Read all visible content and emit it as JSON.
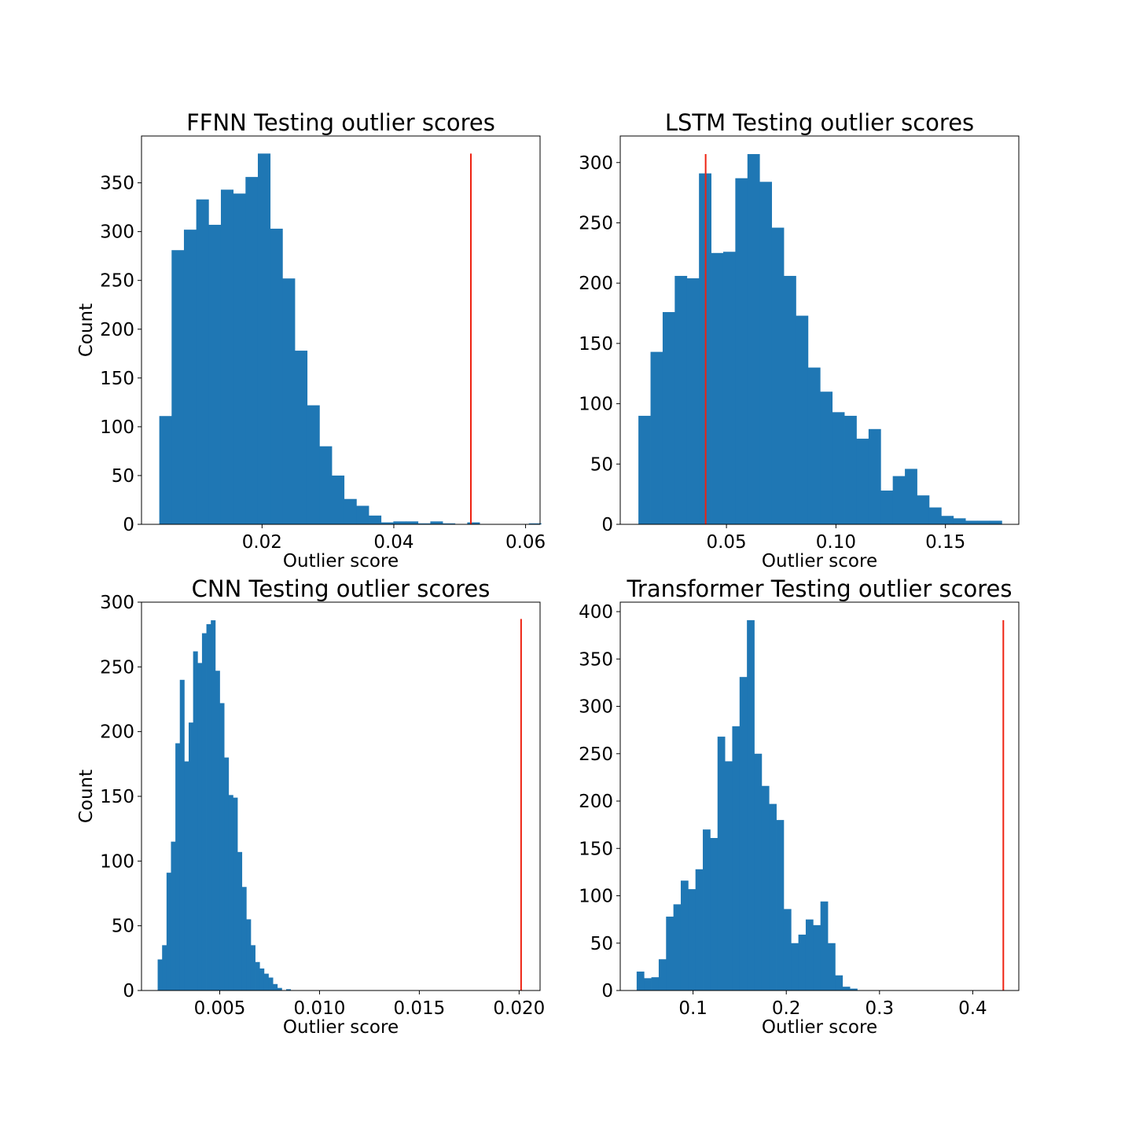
{
  "figure": {
    "colors": {
      "bar": "#1f77b4",
      "threshold": "#ee2211",
      "frame": "#000000"
    }
  },
  "chart_data": [
    {
      "type": "bar",
      "subtype": "histogram",
      "title": "FFNN Testing outlier scores",
      "xlabel": "Outlier score",
      "ylabel": "Count",
      "xlim": [
        0.0017,
        0.0622
      ],
      "ylim": [
        0,
        398
      ],
      "xticks": [
        0.02,
        0.04,
        0.06
      ],
      "xtick_labels": [
        "0.02",
        "0.04",
        "0.06"
      ],
      "yticks": [
        0,
        50,
        100,
        150,
        200,
        250,
        300,
        350
      ],
      "ytick_labels": [
        "0",
        "50",
        "100",
        "150",
        "200",
        "250",
        "300",
        "350"
      ],
      "bin_start": 0.0044,
      "bin_width": 0.00187,
      "counts": [
        111,
        281,
        302,
        333,
        307,
        343,
        339,
        356,
        380,
        303,
        252,
        178,
        122,
        80,
        50,
        26,
        19,
        9,
        2,
        3,
        3,
        1,
        3,
        1,
        0,
        2,
        0,
        0,
        0,
        0,
        1
      ],
      "threshold": 0.0517,
      "threshold_top": 380,
      "grid": false
    },
    {
      "type": "bar",
      "subtype": "histogram",
      "title": "LSTM Testing outlier scores",
      "xlabel": "Outlier score",
      "ylabel": "",
      "xlim": [
        0.0015,
        0.1835
      ],
      "ylim": [
        0,
        322
      ],
      "xticks": [
        0.05,
        0.1,
        0.15
      ],
      "xtick_labels": [
        "0.05",
        "0.10",
        "0.15"
      ],
      "yticks": [
        0,
        50,
        100,
        150,
        200,
        250,
        300
      ],
      "ytick_labels": [
        "0",
        "50",
        "100",
        "150",
        "200",
        "250",
        "300"
      ],
      "bin_start": 0.0098,
      "bin_width": 0.005531,
      "counts": [
        90,
        143,
        176,
        206,
        204,
        291,
        225,
        226,
        287,
        307,
        284,
        246,
        206,
        173,
        130,
        110,
        93,
        90,
        71,
        79,
        28,
        40,
        46,
        24,
        14,
        7,
        5,
        3,
        3,
        3
      ],
      "threshold": 0.0405,
      "threshold_top": 307,
      "grid": false
    },
    {
      "type": "bar",
      "subtype": "histogram",
      "title": "CNN Testing outlier scores",
      "xlabel": "Outlier score",
      "ylabel": "Count",
      "xlim": [
        0.00108,
        0.02105
      ],
      "ylim": [
        0,
        300
      ],
      "xticks": [
        0.005,
        0.01,
        0.015,
        0.02
      ],
      "xtick_labels": [
        "0.005",
        "0.010",
        "0.015",
        "0.020"
      ],
      "yticks": [
        0,
        50,
        100,
        150,
        200,
        250,
        300
      ],
      "ytick_labels": [
        "0",
        "50",
        "100",
        "150",
        "200",
        "250",
        "300"
      ],
      "bin_start": 0.00189,
      "bin_width": 0.000222,
      "counts": [
        24,
        35,
        91,
        115,
        191,
        240,
        177,
        207,
        262,
        253,
        276,
        283,
        286,
        247,
        222,
        180,
        151,
        149,
        107,
        80,
        55,
        35,
        22,
        17,
        13,
        10,
        5,
        2,
        0,
        1
      ],
      "threshold": 0.0201,
      "threshold_top": 287,
      "grid": false
    },
    {
      "type": "bar",
      "subtype": "histogram",
      "title": "Transformer Testing outlier scores",
      "xlabel": "Outlier score",
      "ylabel": "",
      "xlim": [
        0.0219,
        0.4494
      ],
      "ylim": [
        0,
        410
      ],
      "xticks": [
        0.1,
        0.2,
        0.3,
        0.4
      ],
      "xtick_labels": [
        "0.1",
        "0.2",
        "0.3",
        "0.4"
      ],
      "yticks": [
        0,
        50,
        100,
        150,
        200,
        250,
        300,
        350,
        400
      ],
      "ytick_labels": [
        "0",
        "50",
        "100",
        "150",
        "200",
        "250",
        "300",
        "350",
        "400"
      ],
      "bin_start": 0.0395,
      "bin_width": 0.007885,
      "counts": [
        20,
        13,
        14,
        33,
        78,
        91,
        116,
        107,
        128,
        170,
        161,
        268,
        242,
        279,
        331,
        391,
        250,
        216,
        197,
        180,
        86,
        50,
        59,
        75,
        69,
        94,
        50,
        16,
        4,
        2
      ],
      "threshold": 0.4328,
      "threshold_top": 391,
      "grid": false
    }
  ]
}
